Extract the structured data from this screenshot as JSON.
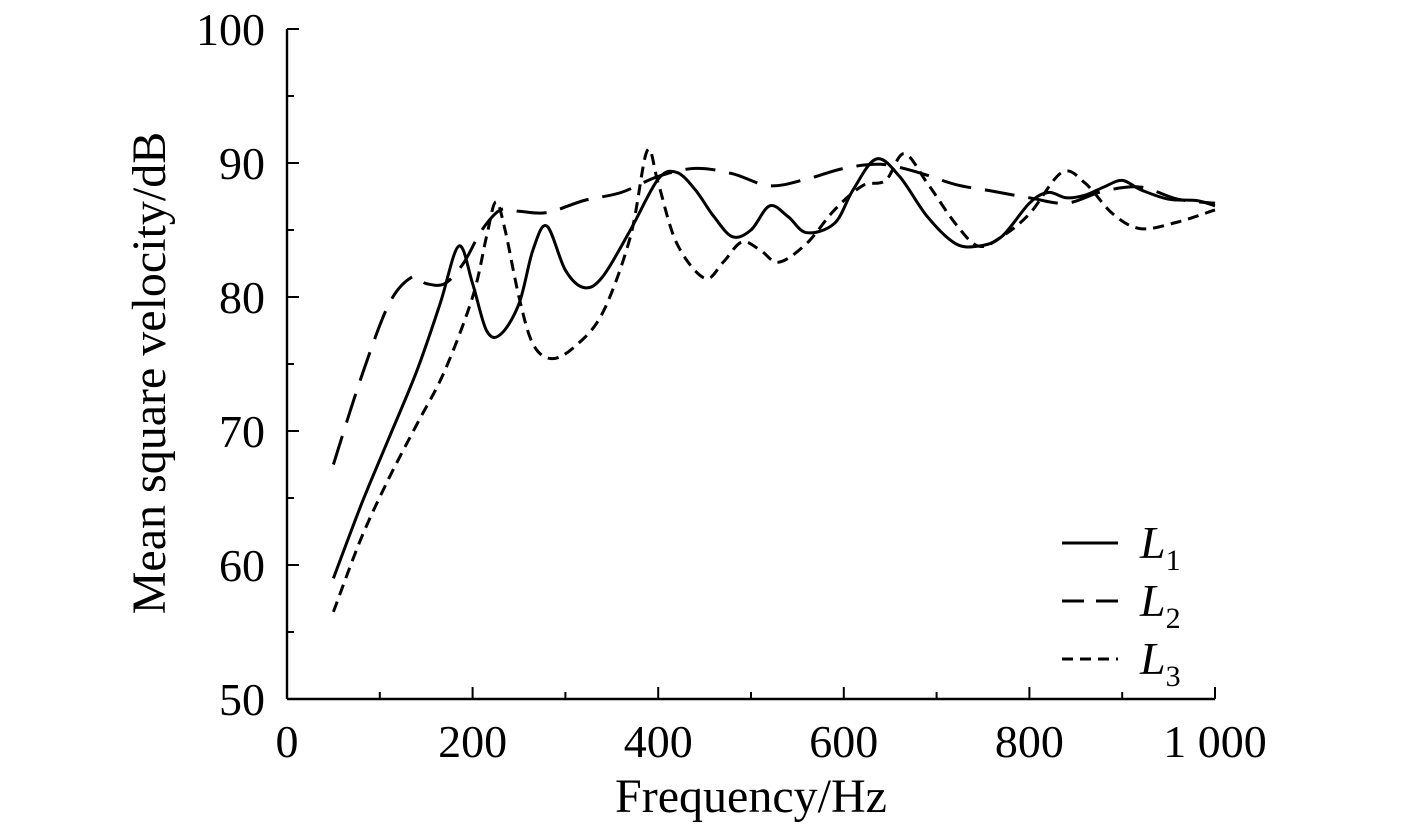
{
  "chart_data": {
    "type": "line",
    "xlabel": "Frequency/Hz",
    "ylabel": "Mean square velocity/dB",
    "xlim": [
      0,
      1000
    ],
    "ylim": [
      50,
      100
    ],
    "x_ticks": [
      0,
      200,
      400,
      600,
      800,
      1000
    ],
    "x_tick_labels": [
      "0",
      "200",
      "400",
      "600",
      "800",
      "1 000"
    ],
    "y_ticks": [
      50,
      60,
      70,
      80,
      90,
      100
    ],
    "y_tick_labels": [
      "50",
      "60",
      "70",
      "80",
      "90",
      "100"
    ],
    "grid": false,
    "legend_position": "bottom-right",
    "series": [
      {
        "name": "L",
        "subscript": "1",
        "dash": "solid",
        "x": [
          50,
          80,
          110,
          140,
          165,
          185,
          200,
          215,
          230,
          250,
          265,
          280,
          300,
          320,
          340,
          370,
          400,
          420,
          440,
          460,
          480,
          500,
          520,
          540,
          560,
          590,
          610,
          635,
          660,
          690,
          720,
          745,
          770,
          800,
          820,
          840,
          860,
          880,
          900,
          920,
          950,
          980,
          1000
        ],
        "y": [
          59,
          64.5,
          69.5,
          74.5,
          79.5,
          83.8,
          81,
          77.5,
          77.2,
          79.5,
          83.5,
          85.3,
          82,
          80.7,
          81.5,
          85,
          88.8,
          89.3,
          88,
          86,
          84.5,
          85,
          86.8,
          86,
          84.8,
          85.5,
          88,
          90.3,
          89,
          86,
          84,
          83.8,
          84.5,
          87,
          87.8,
          87.4,
          87.6,
          88.2,
          88.7,
          88,
          87.3,
          87.2,
          86.8
        ]
      },
      {
        "name": "L",
        "subscript": "2",
        "dash": "long-dash",
        "x": [
          50,
          80,
          110,
          135,
          150,
          170,
          190,
          210,
          230,
          250,
          280,
          320,
          360,
          400,
          440,
          480,
          520,
          560,
          600,
          640,
          680,
          720,
          760,
          800,
          840,
          880,
          920,
          960,
          1000
        ],
        "y": [
          67.5,
          74,
          79.5,
          81.5,
          81,
          81,
          82.5,
          85,
          86.5,
          86.4,
          86.3,
          87.2,
          87.8,
          89,
          89.6,
          89.2,
          88.3,
          88.8,
          89.6,
          89.9,
          89.3,
          88.4,
          87.9,
          87.4,
          87,
          87.9,
          88.2,
          87.3,
          87
        ]
      },
      {
        "name": "L",
        "subscript": "3",
        "dash": "short-dash",
        "x": [
          50,
          80,
          110,
          140,
          170,
          200,
          215,
          225,
          235,
          250,
          265,
          285,
          310,
          340,
          370,
          388,
          400,
          420,
          450,
          470,
          490,
          510,
          530,
          560,
          590,
          620,
          645,
          665,
          690,
          720,
          745,
          770,
          800,
          835,
          860,
          890,
          920,
          960,
          1000
        ],
        "y": [
          56.5,
          62,
          66.5,
          70.5,
          74.5,
          80,
          84.5,
          87.1,
          85,
          80,
          76.5,
          75.4,
          76.3,
          78.8,
          84.5,
          90.9,
          88.5,
          84,
          81.4,
          82.6,
          84.1,
          83.5,
          82.6,
          84,
          86.5,
          88.3,
          88.7,
          90.7,
          88.5,
          85.5,
          83.8,
          84.5,
          86.2,
          89.3,
          88.5,
          86.2,
          85.1,
          85.6,
          86.5
        ]
      }
    ]
  }
}
